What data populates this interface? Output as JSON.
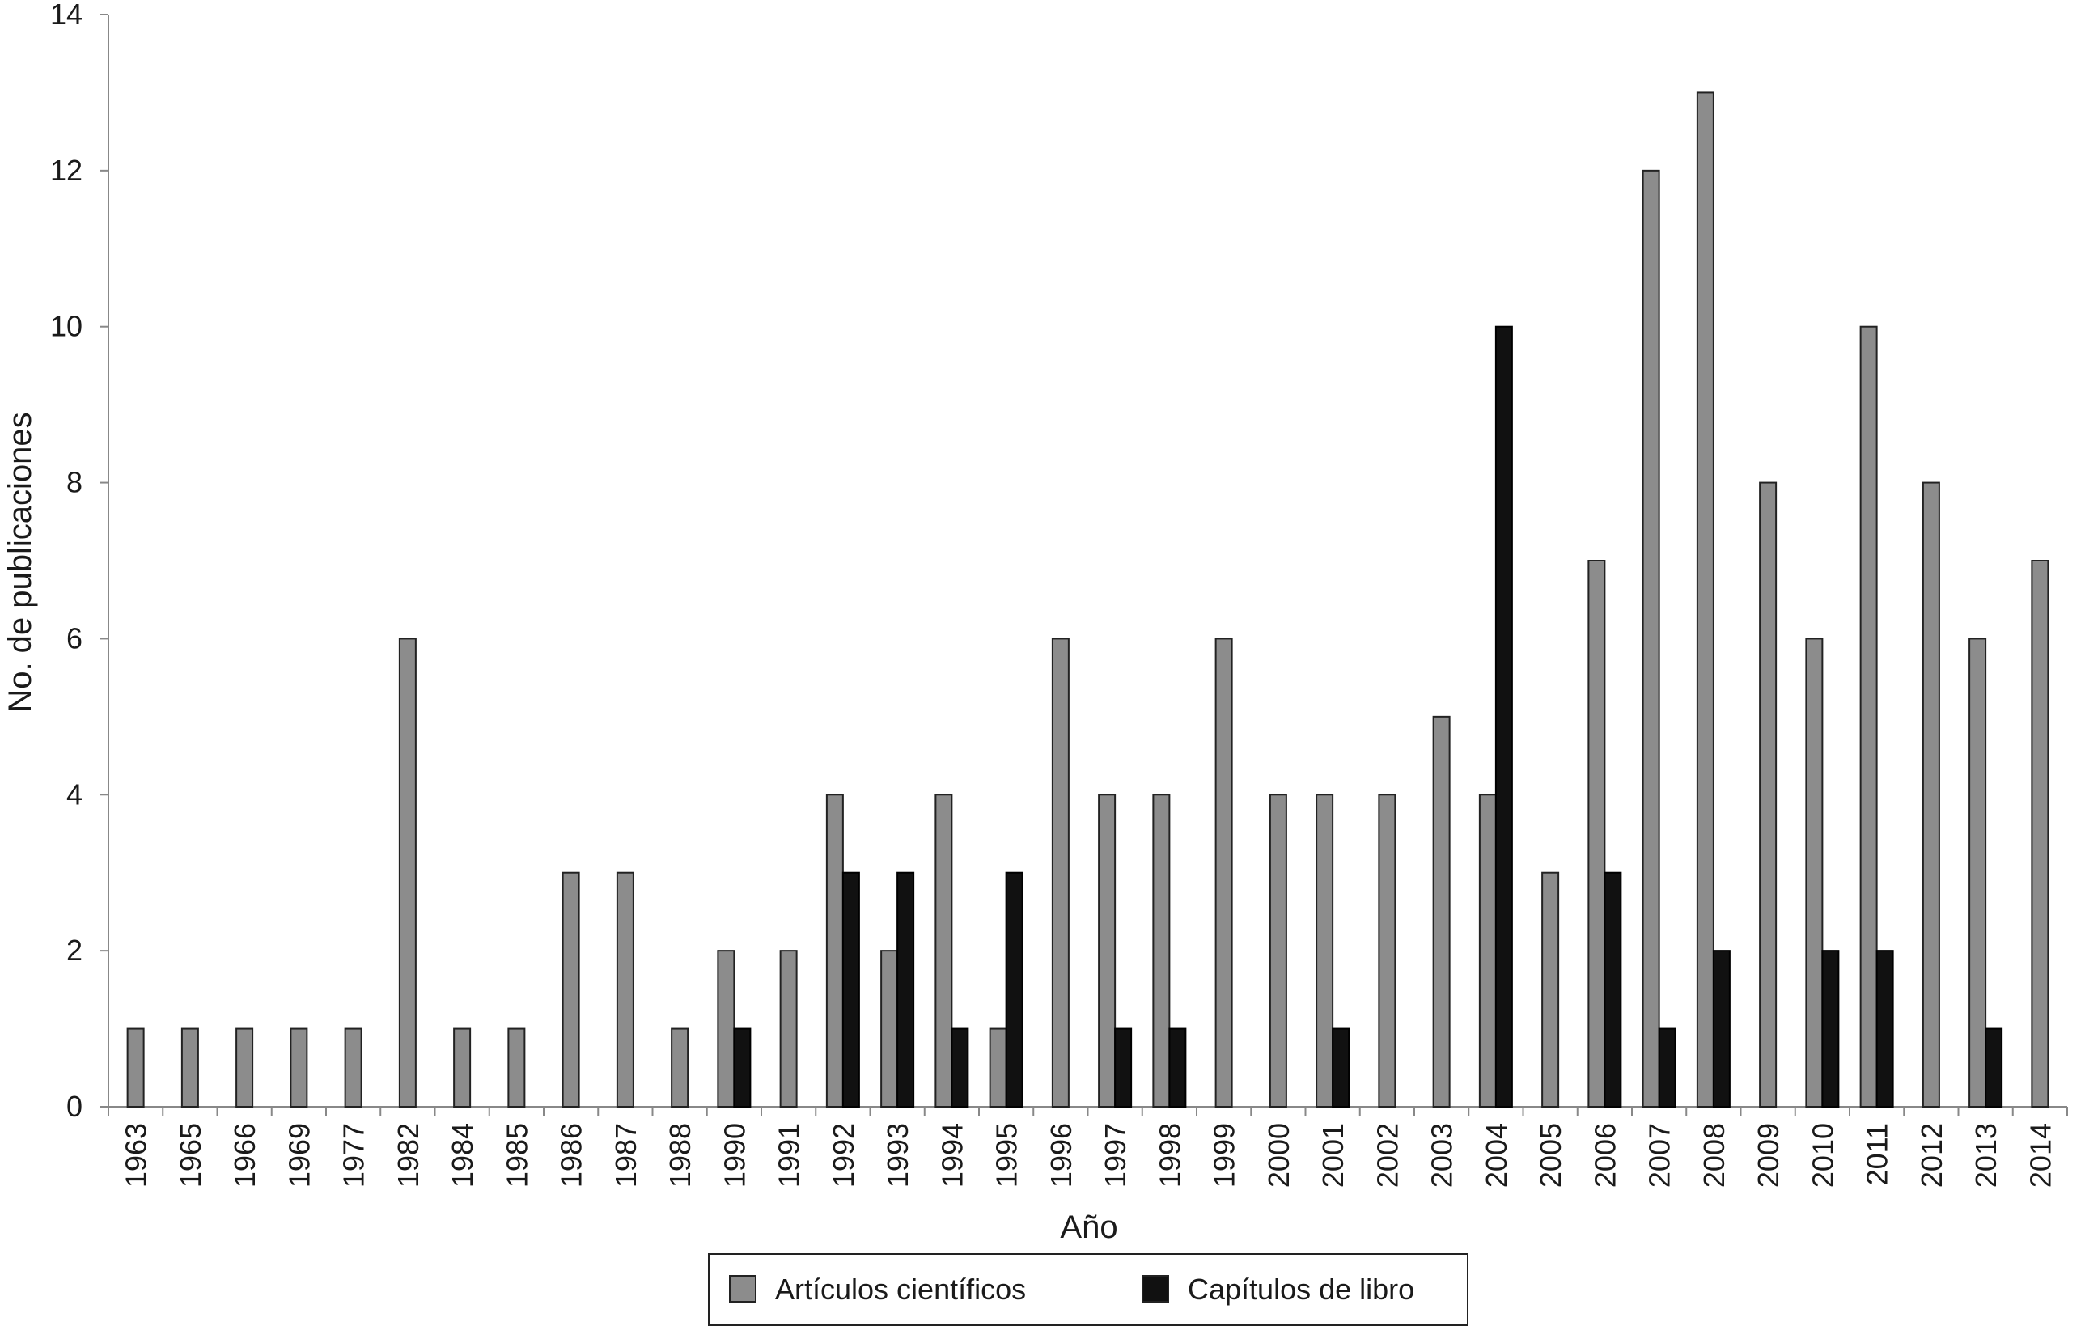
{
  "chart_data": {
    "type": "bar",
    "xlabel": "Año",
    "ylabel": "No. de publicaciones",
    "ylim": [
      0,
      14
    ],
    "yticks": [
      0,
      2,
      4,
      6,
      8,
      10,
      12,
      14
    ],
    "grid": false,
    "legend_position": "bottom",
    "categories": [
      "1963",
      "1965",
      "1966",
      "1969",
      "1977",
      "1982",
      "1984",
      "1985",
      "1986",
      "1987",
      "1988",
      "1990",
      "1991",
      "1992",
      "1993",
      "1994",
      "1995",
      "1996",
      "1997",
      "1998",
      "1999",
      "2000",
      "2001",
      "2002",
      "2003",
      "2004",
      "2005",
      "2006",
      "2007",
      "2008",
      "2009",
      "2010",
      "2011",
      "2012",
      "2013",
      "2014"
    ],
    "series": [
      {
        "name": "Artículos científicos",
        "color": "#8c8c8c",
        "values": [
          1,
          1,
          1,
          1,
          1,
          6,
          1,
          1,
          3,
          3,
          1,
          2,
          2,
          4,
          2,
          4,
          1,
          6,
          4,
          4,
          6,
          4,
          4,
          4,
          5,
          4,
          3,
          7,
          12,
          13,
          8,
          6,
          10,
          8,
          6,
          7
        ]
      },
      {
        "name": "Capítulos de libro",
        "color": "#111111",
        "values": [
          0,
          0,
          0,
          0,
          0,
          0,
          0,
          0,
          0,
          0,
          0,
          1,
          0,
          3,
          3,
          1,
          3,
          0,
          1,
          1,
          0,
          0,
          1,
          0,
          0,
          10,
          0,
          3,
          1,
          2,
          0,
          2,
          2,
          0,
          1,
          0
        ]
      }
    ]
  }
}
